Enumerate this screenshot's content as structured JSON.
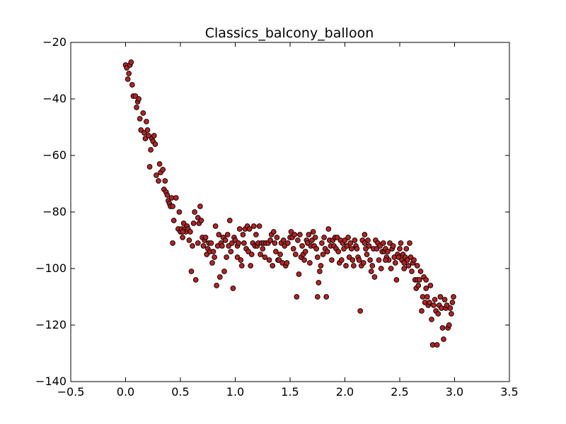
{
  "chart_data": {
    "type": "scatter",
    "title": "Classics_balcony_balloon",
    "xlabel": "",
    "ylabel": "",
    "xlim": [
      -0.5,
      3.5
    ],
    "ylim": [
      -140,
      -20
    ],
    "xticks": [
      -0.5,
      0.0,
      0.5,
      1.0,
      1.5,
      2.0,
      2.5,
      3.0,
      3.5
    ],
    "xtick_labels": [
      "−0.5",
      "0.0",
      "0.5",
      "1.0",
      "1.5",
      "2.0",
      "2.5",
      "3.0",
      "3.5"
    ],
    "yticks": [
      -140,
      -120,
      -100,
      -80,
      -60,
      -40,
      -20
    ],
    "ytick_labels": [
      "−140",
      "−120",
      "−100",
      "−80",
      "−60",
      "−40",
      "−20"
    ],
    "grid": false,
    "marker_color": "#b22222",
    "marker_edge": "#000000",
    "points": [
      [
        0.0,
        -28
      ],
      [
        0.01,
        -29
      ],
      [
        0.02,
        -33
      ],
      [
        0.03,
        -31
      ],
      [
        0.04,
        -28
      ],
      [
        0.05,
        -27
      ],
      [
        0.06,
        -35
      ],
      [
        0.07,
        -39
      ],
      [
        0.09,
        -39
      ],
      [
        0.1,
        -43
      ],
      [
        0.11,
        -41
      ],
      [
        0.12,
        -40
      ],
      [
        0.13,
        -47
      ],
      [
        0.14,
        -51
      ],
      [
        0.16,
        -45
      ],
      [
        0.17,
        -52
      ],
      [
        0.18,
        -54
      ],
      [
        0.19,
        -48
      ],
      [
        0.2,
        -51
      ],
      [
        0.21,
        -53
      ],
      [
        0.22,
        -64
      ],
      [
        0.23,
        -58
      ],
      [
        0.24,
        -54
      ],
      [
        0.25,
        -55
      ],
      [
        0.26,
        -53
      ],
      [
        0.27,
        -56
      ],
      [
        0.28,
        -67
      ],
      [
        0.3,
        -69
      ],
      [
        0.31,
        -63
      ],
      [
        0.32,
        -66
      ],
      [
        0.34,
        -65
      ],
      [
        0.35,
        -72
      ],
      [
        0.36,
        -69
      ],
      [
        0.37,
        -73
      ],
      [
        0.38,
        -74
      ],
      [
        0.39,
        -76
      ],
      [
        0.4,
        -77
      ],
      [
        0.41,
        -78
      ],
      [
        0.42,
        -75
      ],
      [
        0.43,
        -91
      ],
      [
        0.44,
        -83
      ],
      [
        0.46,
        -75
      ],
      [
        0.48,
        -86
      ],
      [
        0.49,
        -80
      ],
      [
        0.5,
        -87
      ],
      [
        0.51,
        -86
      ],
      [
        0.52,
        -89
      ],
      [
        0.53,
        -84
      ],
      [
        0.54,
        -86
      ],
      [
        0.55,
        -87
      ],
      [
        0.56,
        -85
      ],
      [
        0.57,
        -86
      ],
      [
        0.58,
        -90
      ],
      [
        0.59,
        -87
      ],
      [
        0.6,
        -101
      ],
      [
        0.61,
        -92
      ],
      [
        0.62,
        -84
      ],
      [
        0.63,
        -80
      ],
      [
        0.64,
        -104
      ],
      [
        0.66,
        -82
      ],
      [
        0.67,
        -84
      ],
      [
        0.68,
        -78
      ],
      [
        0.69,
        -83
      ],
      [
        0.7,
        -89
      ],
      [
        0.71,
        -92
      ],
      [
        0.72,
        -90
      ],
      [
        0.73,
        -89
      ],
      [
        0.74,
        -95
      ],
      [
        0.75,
        -93
      ],
      [
        0.76,
        -91
      ],
      [
        0.77,
        -94
      ],
      [
        0.78,
        -91
      ],
      [
        0.79,
        -98
      ],
      [
        0.8,
        -94
      ],
      [
        0.81,
        -96
      ],
      [
        0.82,
        -85
      ],
      [
        0.83,
        -106
      ],
      [
        0.84,
        -92
      ],
      [
        0.85,
        -88
      ],
      [
        0.86,
        -103
      ],
      [
        0.87,
        -91
      ],
      [
        0.88,
        -92
      ],
      [
        0.89,
        -89
      ],
      [
        0.9,
        -101
      ],
      [
        0.91,
        -90
      ],
      [
        0.92,
        -96
      ],
      [
        0.93,
        -88
      ],
      [
        0.94,
        -92
      ],
      [
        0.95,
        -83
      ],
      [
        0.96,
        -94
      ],
      [
        0.97,
        -91
      ],
      [
        0.98,
        -107
      ],
      [
        0.99,
        -89
      ],
      [
        1.0,
        -90
      ],
      [
        1.02,
        -92
      ],
      [
        1.03,
        -91
      ],
      [
        1.04,
        -86
      ],
      [
        1.05,
        -97
      ],
      [
        1.06,
        -99
      ],
      [
        1.07,
        -88
      ],
      [
        1.08,
        -91
      ],
      [
        1.09,
        -86
      ],
      [
        1.1,
        -93
      ],
      [
        1.11,
        -85
      ],
      [
        1.12,
        -94
      ],
      [
        1.13,
        -86
      ],
      [
        1.14,
        -99
      ],
      [
        1.15,
        -95
      ],
      [
        1.16,
        -91
      ],
      [
        1.17,
        -85
      ],
      [
        1.18,
        -92
      ],
      [
        1.19,
        -88
      ],
      [
        1.2,
        -92
      ],
      [
        1.21,
        -91
      ],
      [
        1.22,
        -85
      ],
      [
        1.23,
        -95
      ],
      [
        1.24,
        -91
      ],
      [
        1.25,
        -93
      ],
      [
        1.26,
        -91
      ],
      [
        1.27,
        -96
      ],
      [
        1.28,
        -91
      ],
      [
        1.3,
        -91
      ],
      [
        1.31,
        -97
      ],
      [
        1.32,
        -90
      ],
      [
        1.33,
        -88
      ],
      [
        1.34,
        -99
      ],
      [
        1.35,
        -87
      ],
      [
        1.36,
        -91
      ],
      [
        1.37,
        -94
      ],
      [
        1.38,
        -89
      ],
      [
        1.39,
        -97
      ],
      [
        1.4,
        -97
      ],
      [
        1.41,
        -95
      ],
      [
        1.42,
        -91
      ],
      [
        1.43,
        -98
      ],
      [
        1.44,
        -90
      ],
      [
        1.45,
        -92
      ],
      [
        1.46,
        -99
      ],
      [
        1.47,
        -98
      ],
      [
        1.48,
        -91
      ],
      [
        1.5,
        -89
      ],
      [
        1.51,
        -87
      ],
      [
        1.52,
        -89
      ],
      [
        1.53,
        -93
      ],
      [
        1.54,
        -88
      ],
      [
        1.55,
        -95
      ],
      [
        1.56,
        -110
      ],
      [
        1.57,
        -90
      ],
      [
        1.58,
        -102
      ],
      [
        1.59,
        -88
      ],
      [
        1.6,
        -96
      ],
      [
        1.61,
        -92
      ],
      [
        1.62,
        -95
      ],
      [
        1.63,
        -97
      ],
      [
        1.64,
        -94
      ],
      [
        1.65,
        -90
      ],
      [
        1.66,
        -91
      ],
      [
        1.67,
        -88
      ],
      [
        1.68,
        -98
      ],
      [
        1.69,
        -92
      ],
      [
        1.7,
        -90
      ],
      [
        1.71,
        -87
      ],
      [
        1.72,
        -92
      ],
      [
        1.73,
        -89
      ],
      [
        1.74,
        -93
      ],
      [
        1.75,
        -110
      ],
      [
        1.76,
        -105
      ],
      [
        1.77,
        -101
      ],
      [
        1.78,
        -99
      ],
      [
        1.79,
        -91
      ],
      [
        1.8,
        -95
      ],
      [
        1.81,
        -89
      ],
      [
        1.82,
        -93
      ],
      [
        1.83,
        -110
      ],
      [
        1.84,
        -94
      ],
      [
        1.85,
        -86
      ],
      [
        1.86,
        -90
      ],
      [
        1.87,
        -92
      ],
      [
        1.88,
        -97
      ],
      [
        1.89,
        -90
      ],
      [
        1.9,
        -92
      ],
      [
        1.91,
        -89
      ],
      [
        1.92,
        -93
      ],
      [
        1.93,
        -89
      ],
      [
        1.94,
        -94
      ],
      [
        1.95,
        -98
      ],
      [
        1.96,
        -90
      ],
      [
        1.97,
        -97
      ],
      [
        1.98,
        -91
      ],
      [
        1.99,
        -93
      ],
      [
        2.0,
        -90
      ],
      [
        2.01,
        -99
      ],
      [
        2.02,
        -92
      ],
      [
        2.03,
        -89
      ],
      [
        2.04,
        -96
      ],
      [
        2.05,
        -91
      ],
      [
        2.06,
        -93
      ],
      [
        2.07,
        -97
      ],
      [
        2.08,
        -99
      ],
      [
        2.09,
        -90
      ],
      [
        2.1,
        -92
      ],
      [
        2.11,
        -93
      ],
      [
        2.12,
        -96
      ],
      [
        2.13,
        -97
      ],
      [
        2.14,
        -115
      ],
      [
        2.15,
        -99
      ],
      [
        2.16,
        -90
      ],
      [
        2.17,
        -98
      ],
      [
        2.18,
        -88
      ],
      [
        2.19,
        -93
      ],
      [
        2.2,
        -95
      ],
      [
        2.21,
        -90
      ],
      [
        2.22,
        -92
      ],
      [
        2.23,
        -97
      ],
      [
        2.24,
        -101
      ],
      [
        2.25,
        -99
      ],
      [
        2.26,
        -93
      ],
      [
        2.27,
        -103
      ],
      [
        2.28,
        -90
      ],
      [
        2.29,
        -93
      ],
      [
        2.3,
        -91
      ],
      [
        2.31,
        -97
      ],
      [
        2.32,
        -92
      ],
      [
        2.33,
        -100
      ],
      [
        2.34,
        -94
      ],
      [
        2.35,
        -91
      ],
      [
        2.36,
        -94
      ],
      [
        2.37,
        -93
      ],
      [
        2.38,
        -96
      ],
      [
        2.39,
        -94
      ],
      [
        2.4,
        -97
      ],
      [
        2.41,
        -91
      ],
      [
        2.42,
        -100
      ],
      [
        2.43,
        -93
      ],
      [
        2.44,
        -92
      ],
      [
        2.45,
        -96
      ],
      [
        2.46,
        -98
      ],
      [
        2.47,
        -104
      ],
      [
        2.48,
        -95
      ],
      [
        2.49,
        -96
      ],
      [
        2.5,
        -93
      ],
      [
        2.51,
        -91
      ],
      [
        2.52,
        -97
      ],
      [
        2.53,
        -95
      ],
      [
        2.54,
        -100
      ],
      [
        2.55,
        -96
      ],
      [
        2.56,
        -93
      ],
      [
        2.57,
        -97
      ],
      [
        2.58,
        -99
      ],
      [
        2.59,
        -91
      ],
      [
        2.6,
        -96
      ],
      [
        2.61,
        -101
      ],
      [
        2.62,
        -98
      ],
      [
        2.63,
        -97
      ],
      [
        2.64,
        -104
      ],
      [
        2.65,
        -107
      ],
      [
        2.66,
        -104
      ],
      [
        2.67,
        -106
      ],
      [
        2.68,
        -104
      ],
      [
        2.69,
        -101
      ],
      [
        2.7,
        -115
      ],
      [
        2.71,
        -110
      ],
      [
        2.72,
        -103
      ],
      [
        2.73,
        -112
      ],
      [
        2.74,
        -107
      ],
      [
        2.75,
        -110
      ],
      [
        2.76,
        -113
      ],
      [
        2.77,
        -112
      ],
      [
        2.78,
        -106
      ],
      [
        2.79,
        -118
      ],
      [
        2.8,
        -127
      ],
      [
        2.81,
        -113
      ],
      [
        2.82,
        -111
      ],
      [
        2.83,
        -115
      ],
      [
        2.84,
        -127
      ],
      [
        2.85,
        -116
      ],
      [
        2.86,
        -113
      ],
      [
        2.87,
        -110
      ],
      [
        2.88,
        -114
      ],
      [
        2.89,
        -121
      ],
      [
        2.9,
        -125
      ],
      [
        2.91,
        -111
      ],
      [
        2.92,
        -114
      ],
      [
        2.93,
        -113
      ],
      [
        2.94,
        -121
      ],
      [
        2.95,
        -120
      ],
      [
        2.96,
        -114
      ],
      [
        2.97,
        -116
      ],
      [
        2.98,
        -112
      ],
      [
        2.99,
        -110
      ],
      [
        0.43,
        -78
      ],
      [
        0.52,
        -87
      ],
      [
        0.66,
        -91
      ],
      [
        1.02,
        -96
      ],
      [
        1.75,
        -96
      ],
      [
        2.18,
        -91
      ],
      [
        2.37,
        -97
      ],
      [
        2.54,
        -98
      ],
      [
        2.66,
        -99
      ],
      [
        2.74,
        -104
      ]
    ]
  }
}
